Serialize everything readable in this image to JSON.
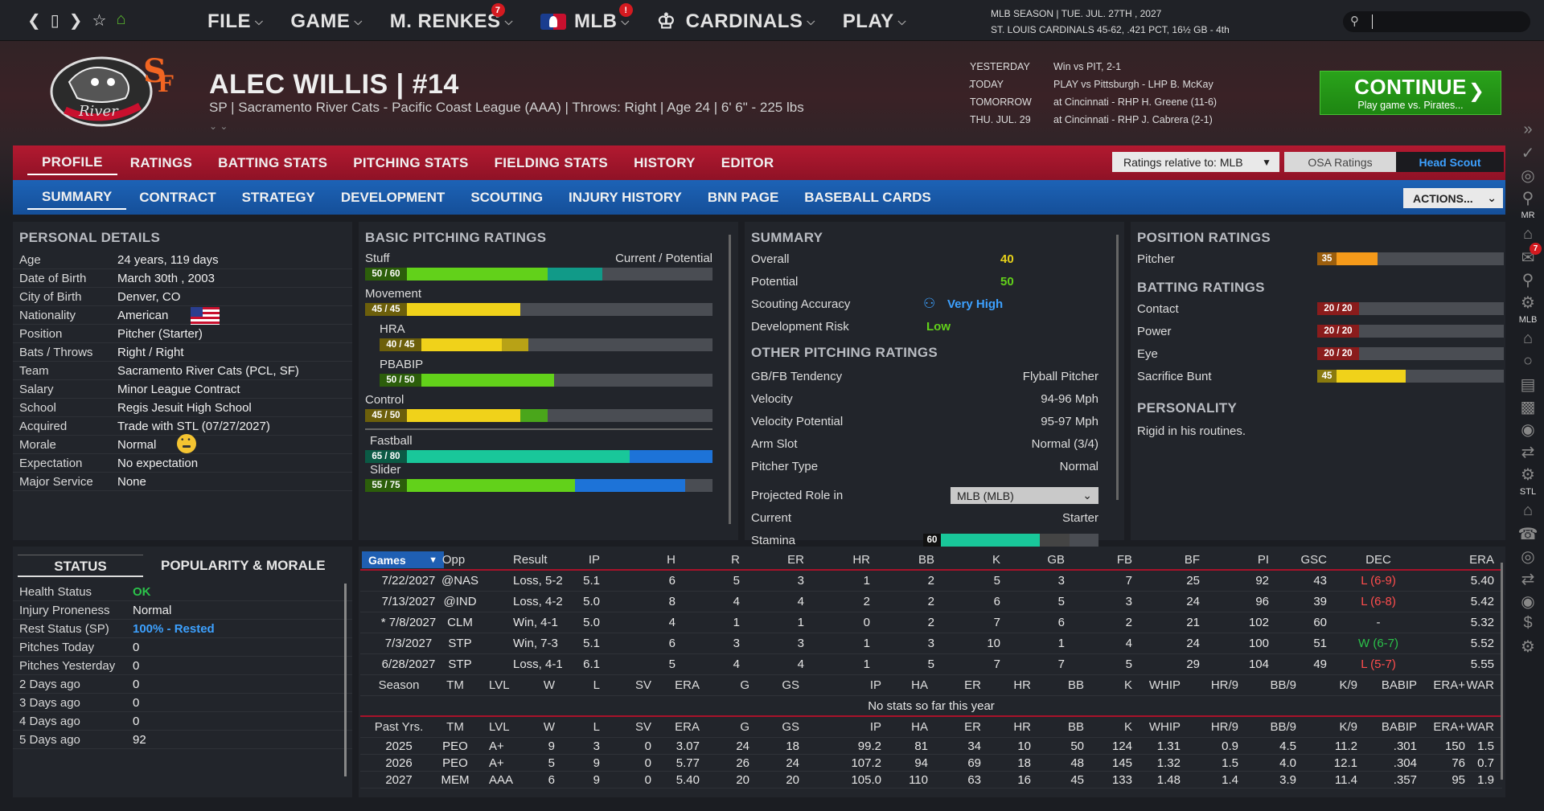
{
  "topbar": {
    "nav_icons": [
      "chevron-left-icon",
      "square-icon",
      "chevron-right-icon",
      "star-icon",
      "home-icon"
    ],
    "menu": [
      {
        "label": "FILE",
        "badge": ""
      },
      {
        "label": "GAME",
        "badge": ""
      },
      {
        "label": "M. RENKES",
        "badge": "7"
      },
      {
        "label": "MLB",
        "badge": "!"
      },
      {
        "label": "CARDINALS",
        "badge": ""
      },
      {
        "label": "PLAY",
        "badge": ""
      }
    ],
    "season_line1": "MLB SEASON  |  TUE. JUL. 27TH , 2027",
    "season_line2": "ST. LOUIS CARDINALS  45-62, .421 PCT, 16½ GB - 4th",
    "search_value": ""
  },
  "player": {
    "name": "ALEC WILLIS  |  #14",
    "info": "SP  |  Sacramento River Cats - Pacific Coast League (AAA)  |  Throws: Right  |  Age 24  |  6' 6\" - 225 lbs"
  },
  "schedule": [
    {
      "day": "YESTERDAY",
      "text": "Win vs PIT, 2-1"
    },
    {
      "day": "TODAY",
      "text": "PLAY vs Pittsburgh - LHP B. McKay"
    },
    {
      "day": "TOMORROW",
      "text": "at Cincinnati - RHP H. Greene (11-6)"
    },
    {
      "day": "THU. JUL. 29",
      "text": "at Cincinnati - RHP J. Cabrera (2-1)"
    }
  ],
  "continue": {
    "label": "CONTINUE",
    "sub": "Play game vs. Pirates..."
  },
  "tabs1": [
    "PROFILE",
    "RATINGS",
    "BATTING STATS",
    "PITCHING STATS",
    "FIELDING STATS",
    "HISTORY",
    "EDITOR"
  ],
  "ratings_relative": "Ratings relative to: MLB",
  "osa_ratings": "OSA Ratings",
  "head_scout": "Head Scout",
  "tabs2": [
    "SUMMARY",
    "CONTRACT",
    "STRATEGY",
    "DEVELOPMENT",
    "SCOUTING",
    "INJURY HISTORY",
    "BNN PAGE",
    "BASEBALL CARDS"
  ],
  "actions": "ACTIONS...",
  "personal": {
    "title": "PERSONAL DETAILS",
    "rows": [
      {
        "k": "Age",
        "v": "24 years, 119 days"
      },
      {
        "k": "Date of Birth",
        "v": "March 30th , 2003"
      },
      {
        "k": "City of Birth",
        "v": "Denver, CO"
      },
      {
        "k": "Nationality",
        "v": "American"
      },
      {
        "k": "Position",
        "v": "Pitcher (Starter)"
      },
      {
        "k": "Bats / Throws",
        "v": "Right / Right"
      },
      {
        "k": "Team",
        "v": "Sacramento River Cats (PCL, SF)"
      },
      {
        "k": "Salary",
        "v": "Minor League Contract"
      },
      {
        "k": "School",
        "v": "Regis Jesuit High School"
      },
      {
        "k": "Acquired",
        "v": "Trade with STL (07/27/2027)"
      },
      {
        "k": "Morale",
        "v": "Normal"
      },
      {
        "k": "Expectation",
        "v": "No expectation"
      },
      {
        "k": "Major Service",
        "v": "None"
      }
    ]
  },
  "pitching": {
    "title": "BASIC PITCHING RATINGS",
    "cur_pot": "Current / Potential",
    "items": [
      {
        "label": "Stuff",
        "tag": "50 / 60",
        "cur": 50,
        "pot": 60,
        "color": "#62d11a",
        "pcolor": "#119a88"
      },
      {
        "label": "Movement",
        "tag": "45 / 45",
        "cur": 45,
        "pot": 45,
        "color": "#f0d21a",
        "pcolor": "#f0d21a"
      },
      {
        "label": "HRA",
        "tag": "40 / 45",
        "cur": 40,
        "pot": 45,
        "color": "#f0d21a",
        "pcolor": "#b8a216"
      },
      {
        "label": "PBABIP",
        "tag": "50 / 50",
        "cur": 50,
        "pot": 50,
        "color": "#62d11a",
        "pcolor": "#62d11a"
      },
      {
        "label": "Control",
        "tag": "45 / 50",
        "cur": 45,
        "pot": 50,
        "color": "#f0d21a",
        "pcolor": "#4aa61b"
      },
      {
        "label": "Fastball",
        "tag": "65 / 80",
        "cur": 65,
        "pot": 80,
        "color": "#19c79a",
        "pcolor": "#1d73d8"
      },
      {
        "label": "Slider",
        "tag": "55 / 75",
        "cur": 55,
        "pot": 75,
        "color": "#62d11a",
        "pcolor": "#1d73d8"
      }
    ]
  },
  "summary": {
    "title": "SUMMARY",
    "rows": [
      {
        "k": "Overall",
        "v": "40",
        "color": "#e8d21a"
      },
      {
        "k": "Potential",
        "v": "50",
        "color": "#62d11a"
      },
      {
        "k": "Scouting Accuracy",
        "v": "Very High",
        "color": "#3da1ff"
      },
      {
        "k": "Development Risk",
        "v": "Low",
        "color": "#62d11a"
      }
    ],
    "other_title": "OTHER PITCHING RATINGS",
    "other": [
      {
        "k": "GB/FB Tendency",
        "v": "Flyball Pitcher"
      },
      {
        "k": "Velocity",
        "v": "94-96 Mph"
      },
      {
        "k": "Velocity Potential",
        "v": "95-97 Mph"
      },
      {
        "k": "Arm Slot",
        "v": "Normal (3/4)"
      },
      {
        "k": "Pitcher Type",
        "v": "Normal"
      }
    ],
    "projected_label": "Projected Role in",
    "projected_value": "MLB (MLB)",
    "current_label": "Current",
    "current_value": "Starter",
    "stamina_label": "Stamina",
    "stamina_tag": "60",
    "stamina_cur": 60,
    "stamina_pot": 70
  },
  "position": {
    "title": "POSITION RATINGS",
    "pitcher_label": "Pitcher",
    "pitcher_tag": "35",
    "pitcher_val": 35,
    "batting_title": "BATTING RATINGS",
    "batting": [
      {
        "label": "Contact",
        "tag": "20 / 20",
        "val": 20,
        "color": "#e03a3a"
      },
      {
        "label": "Power",
        "tag": "20 / 20",
        "val": 20,
        "color": "#e03a3a"
      },
      {
        "label": "Eye",
        "tag": "20 / 20",
        "val": 20,
        "color": "#e03a3a"
      },
      {
        "label": "Sacrifice Bunt",
        "tag": "45",
        "val": 45,
        "color": "#f0d21a"
      }
    ],
    "personality_title": "PERSONALITY",
    "personality": "Rigid in his routines."
  },
  "status": {
    "tab_status": "STATUS",
    "tab_popularity": "POPULARITY & MORALE",
    "rows": [
      {
        "k": "Health Status",
        "v": "OK",
        "color": "#2bc24a"
      },
      {
        "k": "Injury Proneness",
        "v": "Normal",
        "color": "#eee"
      },
      {
        "k": "Rest Status (SP)",
        "v": "100% - Rested",
        "color": "#3da1ff"
      },
      {
        "k": "Pitches Today",
        "v": "0",
        "color": "#eee"
      },
      {
        "k": "Pitches Yesterday",
        "v": "0",
        "color": "#eee"
      },
      {
        "k": "2 Days ago",
        "v": "0",
        "color": "#eee"
      },
      {
        "k": "3 Days ago",
        "v": "0",
        "color": "#eee"
      },
      {
        "k": "4 Days ago",
        "v": "0",
        "color": "#eee"
      },
      {
        "k": "5 Days ago",
        "v": "92",
        "color": "#eee"
      }
    ]
  },
  "games": {
    "selector": "Games",
    "headers": [
      "Opp",
      "Result",
      "IP",
      "H",
      "R",
      "ER",
      "HR",
      "BB",
      "K",
      "GB",
      "FB",
      "BF",
      "PI",
      "GSC",
      "DEC",
      "ERA"
    ],
    "rows": [
      [
        "7/22/2027",
        "@NAS",
        "Loss, 5-2",
        "5.1",
        "6",
        "5",
        "3",
        "1",
        "2",
        "5",
        "3",
        "7",
        "25",
        "92",
        "43",
        "L (6-9)",
        "5.40"
      ],
      [
        "7/13/2027",
        "@IND",
        "Loss, 4-2",
        "5.0",
        "8",
        "4",
        "4",
        "2",
        "2",
        "6",
        "5",
        "3",
        "24",
        "96",
        "39",
        "L (6-8)",
        "5.42"
      ],
      [
        "* 7/8/2027",
        "CLM",
        "Win, 4-1",
        "5.0",
        "4",
        "1",
        "1",
        "0",
        "2",
        "7",
        "6",
        "2",
        "21",
        "102",
        "60",
        "-",
        "5.32"
      ],
      [
        "7/3/2027",
        "STP",
        "Win, 7-3",
        "5.1",
        "6",
        "3",
        "3",
        "1",
        "3",
        "10",
        "1",
        "4",
        "24",
        "100",
        "51",
        "W (6-7)",
        "5.52"
      ],
      [
        "6/28/2027",
        "STP",
        "Loss, 4-1",
        "6.1",
        "5",
        "4",
        "4",
        "1",
        "5",
        "7",
        "7",
        "5",
        "29",
        "104",
        "49",
        "L (5-7)",
        "5.55"
      ]
    ],
    "dec_colors": [
      "#ff4d4d",
      "#ff4d4d",
      "#ddd",
      "#2bc24a",
      "#ff4d4d"
    ]
  },
  "season_stats": {
    "headers": [
      "Season",
      "TM",
      "LVL",
      "W",
      "L",
      "SV",
      "ERA",
      "G",
      "GS",
      "IP",
      "HA",
      "ER",
      "HR",
      "BB",
      "K",
      "WHIP",
      "HR/9",
      "BB/9",
      "K/9",
      "BABIP",
      "ERA+",
      "WAR"
    ],
    "no_stats": "No stats so far this year",
    "past_headers": [
      "Past Yrs.",
      "TM",
      "LVL",
      "W",
      "L",
      "SV",
      "ERA",
      "G",
      "GS",
      "IP",
      "HA",
      "ER",
      "HR",
      "BB",
      "K",
      "WHIP",
      "HR/9",
      "BB/9",
      "K/9",
      "BABIP",
      "ERA+",
      "WAR"
    ],
    "rows": [
      [
        "2025",
        "PEO",
        "A+",
        "9",
        "3",
        "0",
        "3.07",
        "24",
        "18",
        "99.2",
        "81",
        "34",
        "10",
        "50",
        "124",
        "1.31",
        "0.9",
        "4.5",
        "11.2",
        ".301",
        "150",
        "1.5"
      ],
      [
        "2026",
        "PEO",
        "A+",
        "5",
        "9",
        "0",
        "5.77",
        "26",
        "24",
        "107.2",
        "94",
        "69",
        "18",
        "48",
        "145",
        "1.32",
        "1.5",
        "4.0",
        "12.1",
        ".304",
        "76",
        "0.7"
      ],
      [
        "2027",
        "MEM",
        "AAA",
        "6",
        "9",
        "0",
        "5.40",
        "20",
        "20",
        "105.0",
        "110",
        "63",
        "16",
        "45",
        "133",
        "1.48",
        "1.4",
        "3.9",
        "11.4",
        ".357",
        "95",
        "1.9"
      ]
    ]
  },
  "sidebar": {
    "mr": "MR",
    "mlb": "MLB",
    "stl": "STL",
    "badge": "7"
  }
}
